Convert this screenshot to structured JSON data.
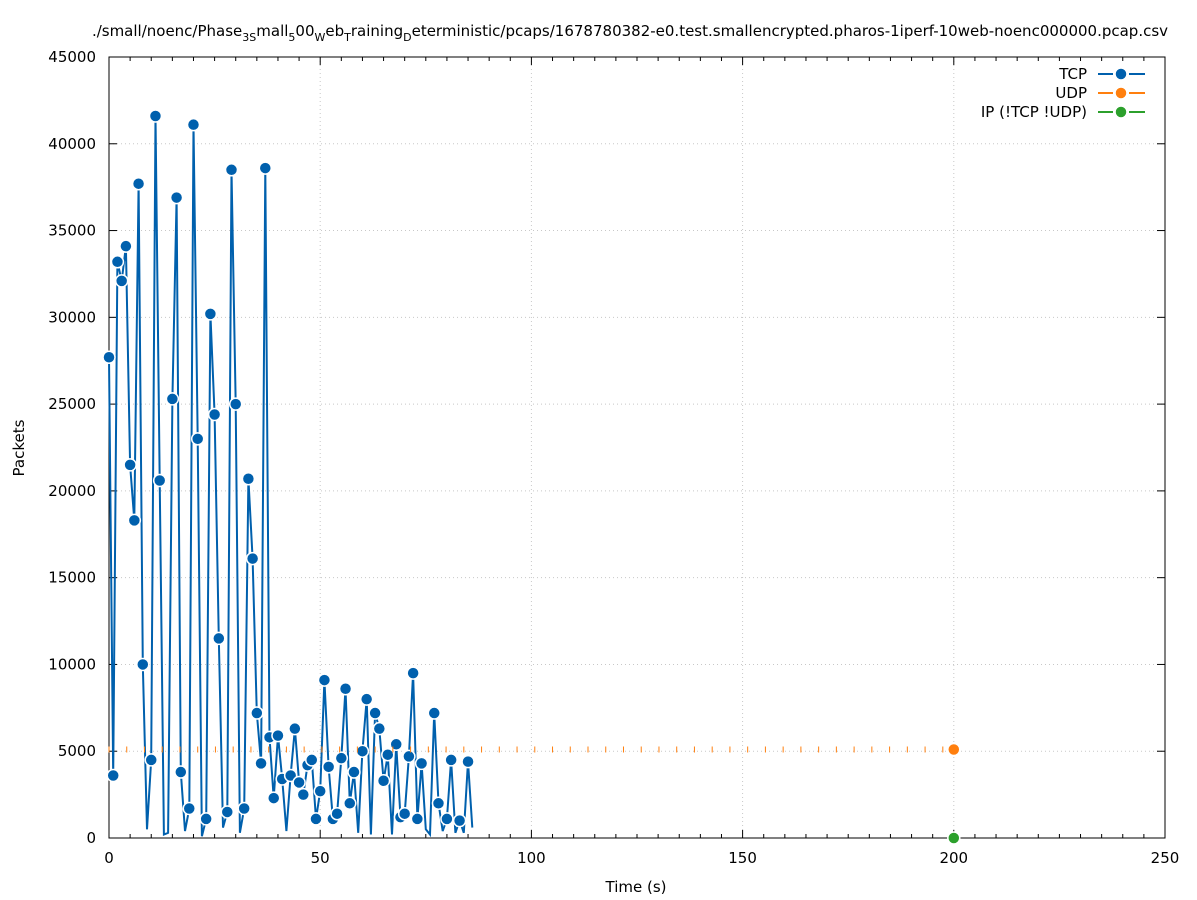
{
  "chart_data": {
    "type": "line",
    "title": "./small/noenc/Phase3Small500WebTrainingDeterministic/pcaps/1678780382-e0.test.smallencrypted.pharos-1iperf-10web-noenc000000.pcap.csv",
    "title_parts": {
      "p1": "./small/noenc/Phase",
      "s1": "3S",
      "p2": "mall",
      "s2": "5",
      "p3": "00",
      "s3": "W",
      "p4": "eb",
      "s4": "T",
      "p5": "raining",
      "s5": "D",
      "p6": "eterministic/pcaps/1678780382-e0.test.smallencrypted.pharos-1iperf-10web-noenc000000.pcap.csv"
    },
    "xlabel": "Time (s)",
    "ylabel": "Packets",
    "xlim": [
      0,
      250
    ],
    "ylim": [
      0,
      45000
    ],
    "xticks": [
      0,
      50,
      100,
      150,
      200,
      250
    ],
    "yticks": [
      0,
      5000,
      10000,
      15000,
      20000,
      25000,
      30000,
      35000,
      40000,
      45000
    ],
    "grid": true,
    "legend_position": "top-right",
    "series": [
      {
        "name": "TCP",
        "color": "#0060ad",
        "x": [
          0,
          1,
          2,
          3,
          4,
          5,
          6,
          7,
          8,
          9,
          10,
          11,
          12,
          13,
          14,
          15,
          16,
          17,
          18,
          19,
          20,
          21,
          22,
          23,
          24,
          25,
          26,
          27,
          28,
          29,
          30,
          31,
          32,
          33,
          34,
          35,
          36,
          37,
          38,
          39,
          40,
          41,
          42,
          43,
          44,
          45,
          46,
          47,
          48,
          49,
          50,
          51,
          52,
          53,
          54,
          55,
          56,
          57,
          58,
          59,
          60,
          61,
          62,
          63,
          64,
          65,
          66,
          67,
          68,
          69,
          70,
          71,
          72,
          73,
          74,
          75,
          76,
          77,
          78,
          79,
          80,
          81,
          82,
          83,
          84,
          85,
          86
        ],
        "y": [
          27700,
          3600,
          33200,
          32100,
          34100,
          21500,
          18300,
          37700,
          10000,
          500,
          4500,
          41600,
          20600,
          200,
          300,
          25300,
          36900,
          3800,
          400,
          1700,
          41100,
          23000,
          100,
          1100,
          30200,
          24400,
          11500,
          600,
          1500,
          38500,
          25000,
          300,
          1700,
          20700,
          16100,
          7200,
          4300,
          38600,
          5800,
          2300,
          5900,
          3400,
          400,
          3600,
          6300,
          3200,
          2500,
          4200,
          4500,
          1100,
          2700,
          9100,
          4100,
          1100,
          1400,
          4600,
          8600,
          2000,
          3800,
          300,
          5000,
          8000,
          200,
          7200,
          6300,
          3300,
          4800,
          200,
          5400,
          1200,
          1400,
          4700,
          9500,
          1100,
          4300,
          500,
          200,
          7200,
          2000,
          400,
          1100,
          4500,
          300,
          1000,
          300,
          4400,
          600
        ],
        "y_note": "points shown are estimates read from the plot"
      },
      {
        "name": "UDP",
        "color": "#ff7f0e",
        "x": [
          0,
          200
        ],
        "y": [
          5100,
          5100
        ],
        "style": "dashed-stubs"
      },
      {
        "name": "IP (!TCP  !UDP)",
        "color": "#2ca02c",
        "x": [
          200
        ],
        "y": [
          0
        ]
      }
    ]
  }
}
